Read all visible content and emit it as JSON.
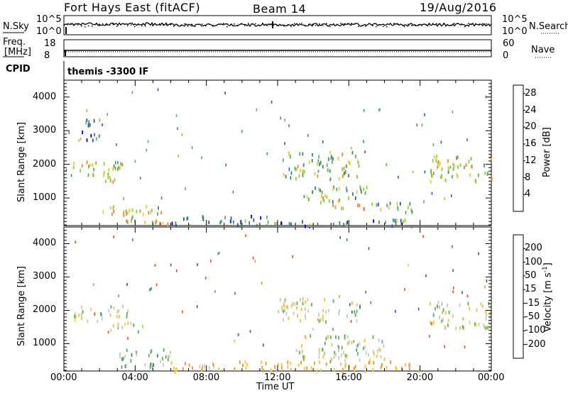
{
  "header": {
    "station": "Fort Hays East (fitACF)",
    "beam": "Beam 14",
    "date": "19/Aug/2016"
  },
  "noise_panel": {
    "left_label": "N.Sky",
    "left_ticks": [
      "10^5",
      "10^0"
    ],
    "right_label": "N.Search",
    "right_ticks": [
      "10^5",
      "10^0"
    ]
  },
  "freq_panel": {
    "left_label_line1": "Freq.",
    "left_label_line2": "[MHz]",
    "left_ticks": [
      "18",
      "8"
    ],
    "right_label": "Nave",
    "right_ticks": [
      "60",
      "0"
    ]
  },
  "cpid": {
    "label": "CPID",
    "mode": "themis -3300 IF"
  },
  "colors": {
    "power": [
      "#0000ff",
      "#2858a8",
      "#3c8c64",
      "#5ab45a",
      "#9ccb3c",
      "#f0c828",
      "#f08c28",
      "#e65028",
      "#e60000"
    ],
    "velocity": [
      "#1e1eff",
      "#2858a8",
      "#3c8c64",
      "#5ab45a",
      "#c8c8c0",
      "#f0c828",
      "#f09628",
      "#f05028",
      "#e60000"
    ]
  },
  "chart_data": [
    {
      "type": "heatmap",
      "title": "Power",
      "ylabel": "Slant Range [km]",
      "xlabel": "Time UT",
      "x_ticks": [
        "00:00",
        "04:00",
        "08:00",
        "12:00",
        "16:00",
        "20:00",
        "00:00"
      ],
      "y_ticks": [
        1000,
        2000,
        3000,
        4000
      ],
      "ylim": [
        180,
        4500
      ],
      "xlim_hours": [
        0,
        24
      ],
      "colorbar": {
        "label": "Power [dB]",
        "ticks": [
          4,
          8,
          12,
          16,
          20,
          24,
          28
        ],
        "range": [
          0,
          30
        ]
      },
      "scatter_regions": [
        {
          "t": [
            0.5,
            3.6
          ],
          "r": [
            1850,
            2150
          ],
          "v": 17
        },
        {
          "t": [
            1.2,
            3.0
          ],
          "r": [
            1500,
            1950
          ],
          "v": 14
        },
        {
          "t": [
            1.0,
            2.0
          ],
          "r": [
            2600,
            3400
          ],
          "v": 8
        },
        {
          "t": [
            2.0,
            5.5
          ],
          "r": [
            300,
            800
          ],
          "v": 15
        },
        {
          "t": [
            4.5,
            6.0
          ],
          "r": [
            200,
            400
          ],
          "v": 23
        },
        {
          "t": [
            6.0,
            12.0
          ],
          "r": [
            200,
            500
          ],
          "v": 7
        },
        {
          "t": [
            12.2,
            16.5
          ],
          "r": [
            1600,
            2400
          ],
          "v": 14
        },
        {
          "t": [
            13.5,
            17.0
          ],
          "r": [
            900,
            1400
          ],
          "v": 13
        },
        {
          "t": [
            15.0,
            17.0
          ],
          "r": [
            700,
            900
          ],
          "v": 19
        },
        {
          "t": [
            12.0,
            19.5
          ],
          "r": [
            200,
            400
          ],
          "v": 9
        },
        {
          "t": [
            20.5,
            24.0
          ],
          "r": [
            1500,
            2300
          ],
          "v": 16
        },
        {
          "t": [
            17.0,
            20.0
          ],
          "r": [
            600,
            900
          ],
          "v": 11
        }
      ]
    },
    {
      "type": "heatmap",
      "title": "Velocity",
      "ylabel": "Slant Range [km]",
      "xlabel": "Time UT",
      "x_ticks": [
        "00:00",
        "04:00",
        "08:00",
        "12:00",
        "16:00",
        "20:00",
        "00:00"
      ],
      "y_ticks": [
        1000,
        2000,
        3000,
        4000
      ],
      "ylim": [
        180,
        4500
      ],
      "xlim_hours": [
        0,
        24
      ],
      "colorbar": {
        "label": "Velocity [m s^-1]",
        "ticks": [
          200,
          100,
          50,
          15,
          -15,
          -50,
          -100,
          -200
        ],
        "range": [
          -250,
          250
        ]
      },
      "scatter_regions": [
        {
          "t": [
            0.5,
            3.6
          ],
          "r": [
            1700,
            2200
          ],
          "v": 0
        },
        {
          "t": [
            2.5,
            4.5
          ],
          "r": [
            1400,
            1700
          ],
          "v": 0
        },
        {
          "t": [
            3.0,
            6.0
          ],
          "r": [
            300,
            900
          ],
          "v": 30
        },
        {
          "t": [
            6.0,
            12.0
          ],
          "r": [
            200,
            500
          ],
          "v": -40
        },
        {
          "t": [
            12.0,
            16.5
          ],
          "r": [
            1700,
            2400
          ],
          "v": 0
        },
        {
          "t": [
            13.0,
            18.0
          ],
          "r": [
            500,
            1300
          ],
          "v": 0
        },
        {
          "t": [
            12.0,
            20.0
          ],
          "r": [
            200,
            500
          ],
          "v": -45
        },
        {
          "t": [
            20.5,
            24.0
          ],
          "r": [
            1500,
            2300
          ],
          "v": 0
        }
      ]
    }
  ]
}
